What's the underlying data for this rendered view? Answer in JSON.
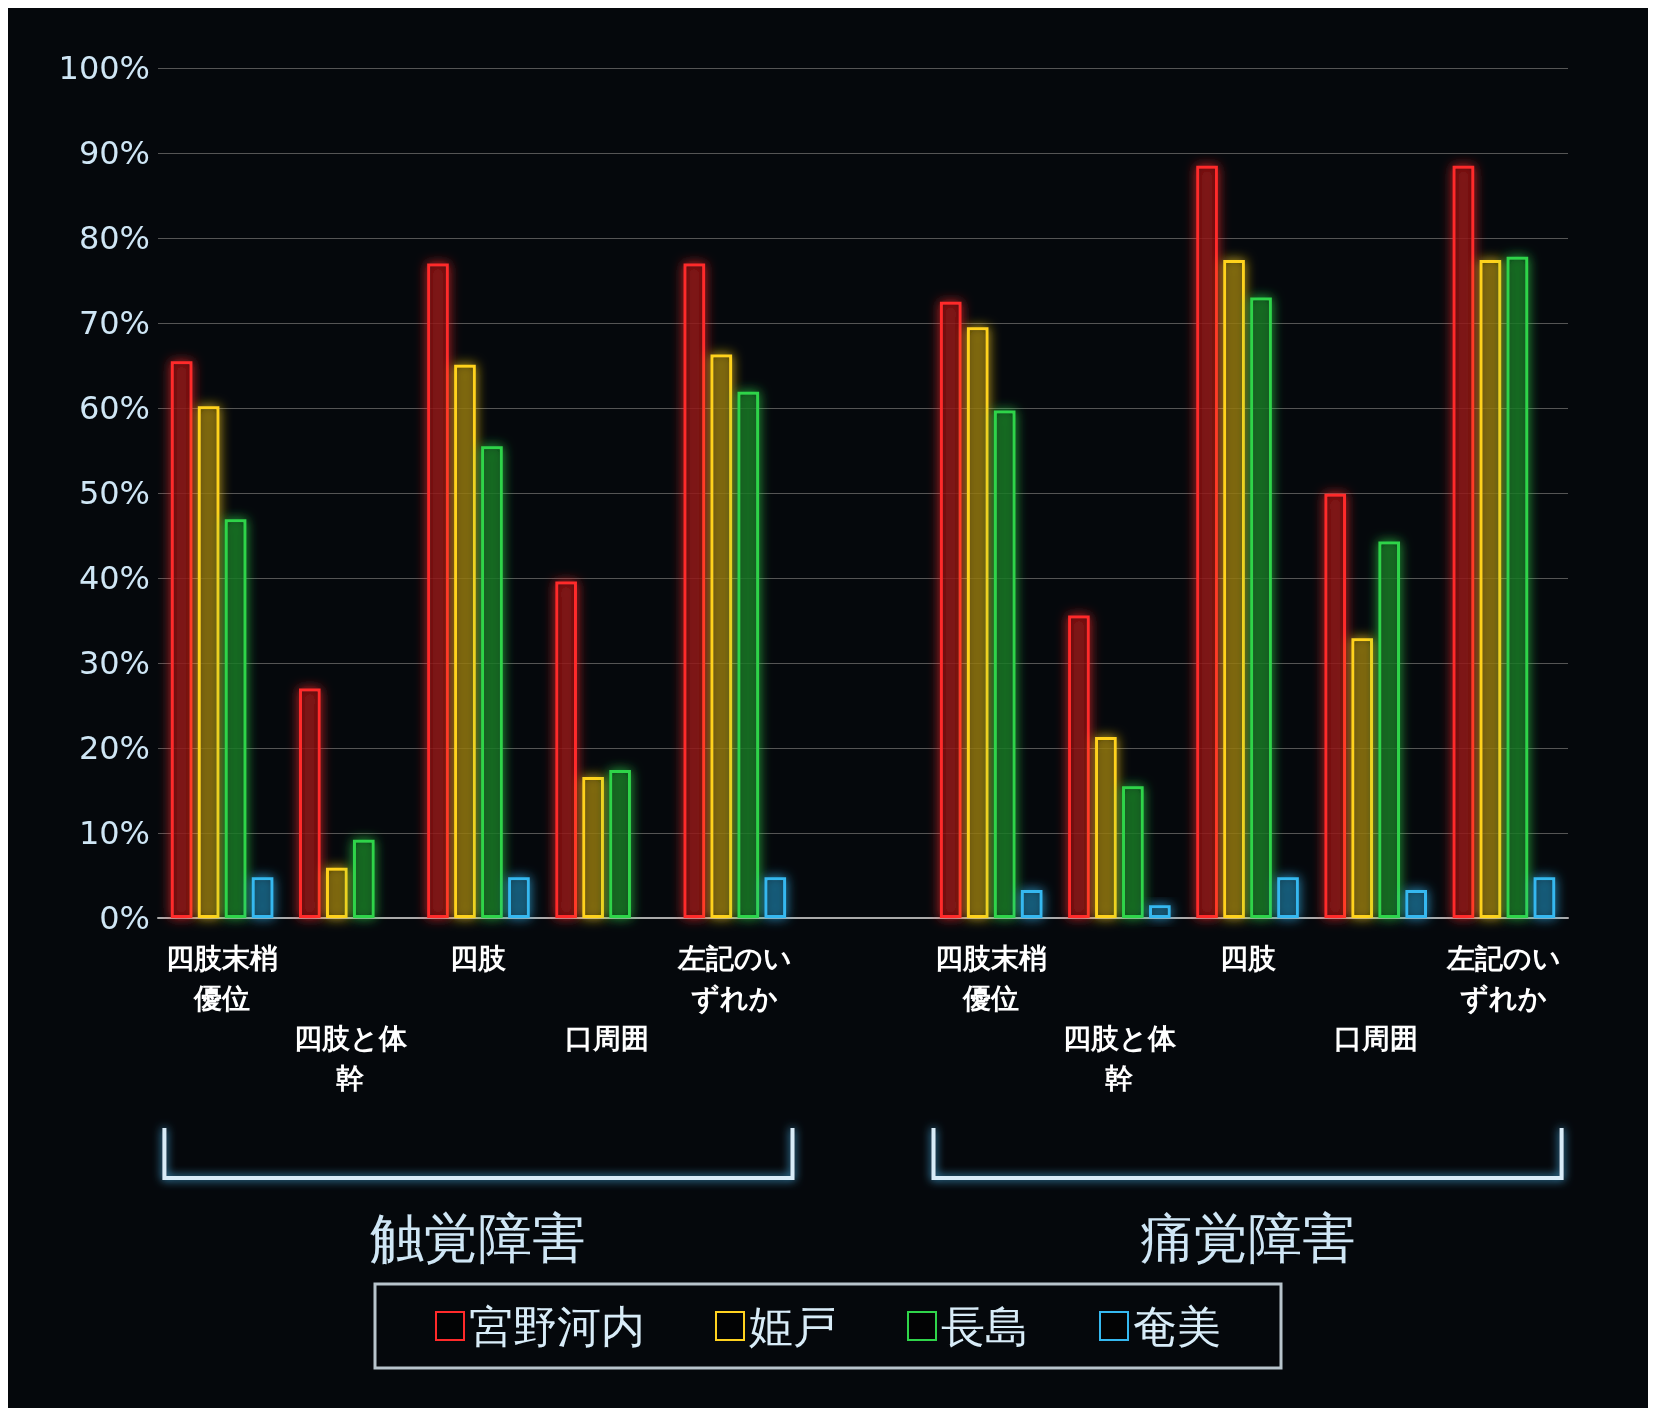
{
  "chart_data": {
    "type": "bar",
    "categories": [
      "四肢末梢優位",
      "四肢と体幹",
      "四肢",
      "口周囲",
      "左記のいずれか",
      null,
      "四肢末梢優位",
      "四肢と体幹",
      "四肢",
      "口周囲",
      "左記のいずれか"
    ],
    "series": [
      {
        "name": "宮野河内",
        "color": "#ff2a2a",
        "values": [
          65.5,
          27,
          77,
          39.6,
          77,
          null,
          72.5,
          35.6,
          88.5,
          49.9,
          88.5
        ]
      },
      {
        "name": "姫戸",
        "color": "#ffd21f",
        "values": [
          60.2,
          5.9,
          65.1,
          16.6,
          66.3,
          null,
          69.5,
          21.3,
          77.4,
          32.9,
          77.4
        ]
      },
      {
        "name": "長島",
        "color": "#2fd44a",
        "values": [
          46.9,
          9.2,
          55.5,
          17.4,
          61.9,
          null,
          59.7,
          15.5,
          73,
          44.3,
          77.8
        ]
      },
      {
        "name": "奄美",
        "color": "#35b8f0",
        "values": [
          4.8,
          0,
          4.8,
          0,
          4.8,
          null,
          3.3,
          1.5,
          4.8,
          3.3,
          4.8
        ]
      }
    ],
    "ylim": [
      0,
      100
    ],
    "yticks": [
      {
        "value": 0,
        "label": "0%"
      },
      {
        "value": 10,
        "label": "10%"
      },
      {
        "value": 20,
        "label": "20%"
      },
      {
        "value": 30,
        "label": "30%"
      },
      {
        "value": 40,
        "label": "40%"
      },
      {
        "value": 50,
        "label": "50%"
      },
      {
        "value": 60,
        "label": "60%"
      },
      {
        "value": 70,
        "label": "70%"
      },
      {
        "value": 80,
        "label": "80%"
      },
      {
        "value": 90,
        "label": "90%"
      },
      {
        "value": 100,
        "label": "100%"
      }
    ],
    "annotations": [
      "触覚障害",
      "痛覚障害"
    ],
    "grid": "y",
    "legend": "bottom"
  }
}
